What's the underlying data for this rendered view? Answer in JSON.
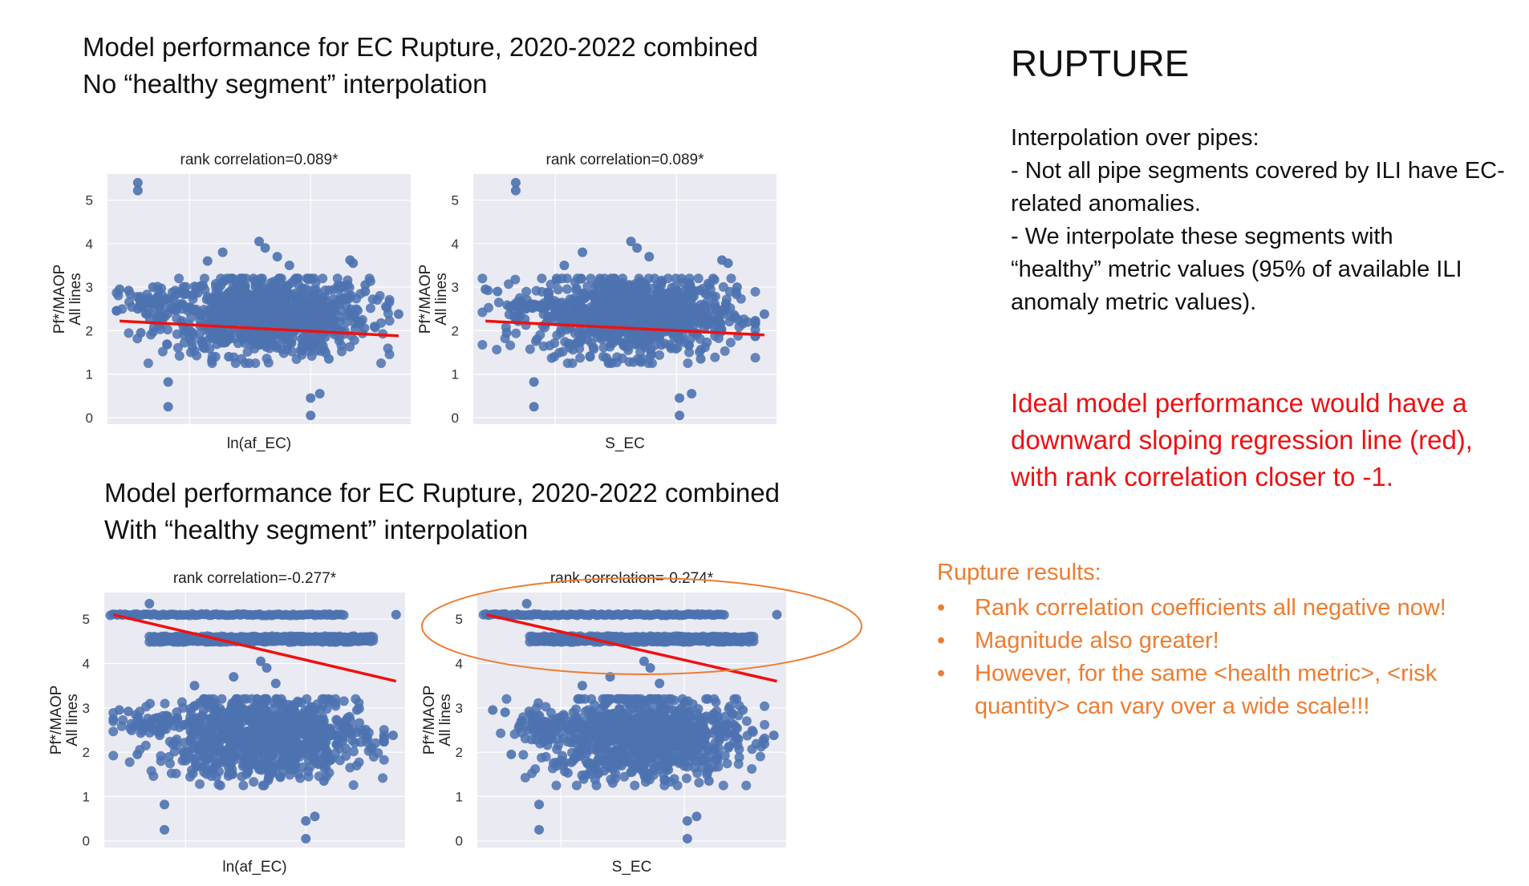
{
  "top_heading": {
    "line1": "Model performance for EC Rupture, 2020-2022 combined",
    "line2": "No “healthy segment” interpolation"
  },
  "bottom_heading": {
    "line1": "Model performance for EC Rupture, 2020-2022 combined",
    "line2": "With “healthy segment” interpolation"
  },
  "side": {
    "title": "RUPTURE",
    "interpolation_lines": [
      "Interpolation over pipes:",
      "- Not all pipe segments covered by ILI have EC-",
      "related anomalies.",
      "- We interpolate these segments with",
      "“healthy” metric values (95% of available ILI",
      "anomaly metric values)."
    ],
    "ideal_lines": [
      "Ideal model performance would have a",
      "downward sloping regression line (red),",
      "with rank correlation closer to -1."
    ],
    "results_heading": "Rupture results:",
    "results_bullets": [
      {
        "line1": "Rank correlation coefficients all negative now!",
        "line2": ""
      },
      {
        "line1": "Magnitude also greater!",
        "line2": ""
      },
      {
        "line1": "However, for the same <health metric>, <risk",
        "line2": "quantity> can vary over a wide scale!!!"
      }
    ],
    "bullet_char": "•"
  },
  "colors": {
    "plot_bg": "#eaeaf2",
    "grid": "#ffffff",
    "points": "#4c72b0",
    "regression": "#ee1111",
    "highlight_ellipse": "#ed7d31",
    "ideal_text": "#ee1111",
    "results_text": "#ed7d31"
  },
  "chart_data": [
    {
      "type": "scatter",
      "title": "rank correlation=0.089*",
      "xlabel": "ln(af_EC)",
      "ylabel_lines": [
        "Pf*/MAOP",
        "All lines"
      ],
      "yticks": [
        0,
        1,
        2,
        3,
        4,
        5
      ],
      "ylim": [
        -0.15,
        5.6
      ],
      "xlim": [
        0,
        1
      ],
      "grid": true,
      "x_tick_labels_visible": false,
      "regression": {
        "x": [
          0.04,
          0.96
        ],
        "y": [
          2.22,
          1.88
        ]
      },
      "bands": [],
      "points": [
        {
          "x": 0.1,
          "y": 5.4
        },
        {
          "x": 0.1,
          "y": 5.22
        },
        {
          "x": 0.04,
          "y": 2.95
        },
        {
          "x": 0.07,
          "y": 2.92
        },
        {
          "x": 0.11,
          "y": 2.6
        },
        {
          "x": 0.15,
          "y": 3.0
        },
        {
          "x": 0.1,
          "y": 2.5
        },
        {
          "x": 0.11,
          "y": 1.95
        },
        {
          "x": 0.2,
          "y": 0.82
        },
        {
          "x": 0.2,
          "y": 0.25
        },
        {
          "x": 0.67,
          "y": 0.45
        },
        {
          "x": 0.7,
          "y": 0.55
        },
        {
          "x": 0.67,
          "y": 0.05
        },
        {
          "x": 0.96,
          "y": 2.38
        },
        {
          "x": 0.8,
          "y": 3.62
        },
        {
          "x": 0.81,
          "y": 3.55
        },
        {
          "x": 0.5,
          "y": 4.05
        },
        {
          "x": 0.52,
          "y": 3.9
        },
        {
          "x": 0.38,
          "y": 3.8
        },
        {
          "x": 0.33,
          "y": 3.6
        },
        {
          "x": 0.56,
          "y": 3.7
        },
        {
          "x": 0.6,
          "y": 3.5
        },
        {
          "x": 0.85,
          "y": 3.05
        },
        {
          "x": 0.85,
          "y": 2.9
        },
        {
          "x": 0.73,
          "y": 1.35
        },
        {
          "x": 0.4,
          "y": 1.4
        },
        {
          "x": 0.28,
          "y": 2.5
        }
      ],
      "clusters": [
        {
          "cx": 0.52,
          "cy": 2.35,
          "sx": 0.17,
          "sy": 0.45,
          "n": 900
        },
        {
          "cx": 0.16,
          "cy": 2.65,
          "sx": 0.05,
          "sy": 0.12,
          "n": 40
        }
      ]
    },
    {
      "type": "scatter",
      "title": "rank correlation=0.089*",
      "xlabel": "S_EC",
      "ylabel_lines": [
        "Pf*/MAOP",
        "All lines"
      ],
      "yticks": [
        0,
        1,
        2,
        3,
        4,
        5
      ],
      "ylim": [
        -0.15,
        5.6
      ],
      "xlim": [
        0,
        1
      ],
      "grid": true,
      "x_tick_labels_visible": false,
      "regression": {
        "x": [
          0.04,
          0.96
        ],
        "y": [
          2.22,
          1.9
        ]
      },
      "bands": [],
      "points": [
        {
          "x": 0.14,
          "y": 5.4
        },
        {
          "x": 0.14,
          "y": 5.22
        },
        {
          "x": 0.04,
          "y": 2.95
        },
        {
          "x": 0.08,
          "y": 2.9
        },
        {
          "x": 0.12,
          "y": 2.55
        },
        {
          "x": 0.11,
          "y": 1.95
        },
        {
          "x": 0.2,
          "y": 0.82
        },
        {
          "x": 0.2,
          "y": 0.25
        },
        {
          "x": 0.68,
          "y": 0.45
        },
        {
          "x": 0.72,
          "y": 0.55
        },
        {
          "x": 0.68,
          "y": 0.05
        },
        {
          "x": 0.96,
          "y": 2.38
        },
        {
          "x": 0.82,
          "y": 3.62
        },
        {
          "x": 0.84,
          "y": 3.55
        },
        {
          "x": 0.52,
          "y": 4.05
        },
        {
          "x": 0.54,
          "y": 3.9
        },
        {
          "x": 0.36,
          "y": 3.8
        },
        {
          "x": 0.3,
          "y": 3.5
        },
        {
          "x": 0.58,
          "y": 3.7
        },
        {
          "x": 0.87,
          "y": 3.0
        },
        {
          "x": 0.75,
          "y": 1.35
        },
        {
          "x": 0.25,
          "y": 2.7
        }
      ],
      "clusters": [
        {
          "cx": 0.53,
          "cy": 2.35,
          "sx": 0.16,
          "sy": 0.45,
          "n": 900
        },
        {
          "cx": 0.2,
          "cy": 2.6,
          "sx": 0.05,
          "sy": 0.12,
          "n": 40
        }
      ]
    },
    {
      "type": "scatter",
      "title": "rank correlation=-0.277*",
      "xlabel": "ln(af_EC)",
      "ylabel_lines": [
        "Pf*/MAOP",
        "All lines"
      ],
      "yticks": [
        0,
        1,
        2,
        3,
        4,
        5
      ],
      "ylim": [
        -0.15,
        5.6
      ],
      "xlim": [
        0,
        1
      ],
      "grid": true,
      "x_tick_labels_visible": false,
      "regression": {
        "x": [
          0.03,
          0.97
        ],
        "y": [
          5.1,
          3.6
        ]
      },
      "bands": [
        {
          "x0": 0.02,
          "x1": 0.8,
          "y": 5.1
        },
        {
          "x0": 0.15,
          "x1": 0.9,
          "y": 4.6
        },
        {
          "x0": 0.15,
          "x1": 0.9,
          "y": 4.5
        }
      ],
      "points": [
        {
          "x": 0.15,
          "y": 5.35
        },
        {
          "x": 0.97,
          "y": 5.1
        },
        {
          "x": 0.05,
          "y": 2.95
        },
        {
          "x": 0.08,
          "y": 2.92
        },
        {
          "x": 0.11,
          "y": 1.95
        },
        {
          "x": 0.2,
          "y": 0.82
        },
        {
          "x": 0.2,
          "y": 0.25
        },
        {
          "x": 0.67,
          "y": 0.45
        },
        {
          "x": 0.7,
          "y": 0.55
        },
        {
          "x": 0.67,
          "y": 0.05
        },
        {
          "x": 0.96,
          "y": 2.38
        },
        {
          "x": 0.52,
          "y": 4.05
        },
        {
          "x": 0.54,
          "y": 3.9
        },
        {
          "x": 0.43,
          "y": 3.7
        },
        {
          "x": 0.57,
          "y": 3.55
        },
        {
          "x": 0.3,
          "y": 3.5
        },
        {
          "x": 0.84,
          "y": 2.95
        },
        {
          "x": 0.73,
          "y": 1.35
        }
      ],
      "clusters": [
        {
          "cx": 0.52,
          "cy": 2.35,
          "sx": 0.17,
          "sy": 0.45,
          "n": 900
        },
        {
          "cx": 0.16,
          "cy": 2.65,
          "sx": 0.05,
          "sy": 0.12,
          "n": 40
        }
      ]
    },
    {
      "type": "scatter",
      "title": "rank correlation=-0.274*",
      "xlabel": "S_EC",
      "ylabel_lines": [
        "Pf*/MAOP",
        "All lines"
      ],
      "yticks": [
        0,
        1,
        2,
        3,
        4,
        5
      ],
      "ylim": [
        -0.15,
        5.6
      ],
      "xlim": [
        0,
        1
      ],
      "grid": true,
      "x_tick_labels_visible": false,
      "regression": {
        "x": [
          0.03,
          0.97
        ],
        "y": [
          5.1,
          3.6
        ]
      },
      "bands": [
        {
          "x0": 0.02,
          "x1": 0.8,
          "y": 5.1
        },
        {
          "x0": 0.17,
          "x1": 0.9,
          "y": 4.6
        },
        {
          "x0": 0.17,
          "x1": 0.9,
          "y": 4.5
        }
      ],
      "points": [
        {
          "x": 0.16,
          "y": 5.35
        },
        {
          "x": 0.97,
          "y": 5.1
        },
        {
          "x": 0.05,
          "y": 2.95
        },
        {
          "x": 0.09,
          "y": 2.9
        },
        {
          "x": 0.11,
          "y": 1.95
        },
        {
          "x": 0.2,
          "y": 0.82
        },
        {
          "x": 0.2,
          "y": 0.25
        },
        {
          "x": 0.68,
          "y": 0.45
        },
        {
          "x": 0.71,
          "y": 0.55
        },
        {
          "x": 0.68,
          "y": 0.05
        },
        {
          "x": 0.96,
          "y": 2.38
        },
        {
          "x": 0.54,
          "y": 4.05
        },
        {
          "x": 0.56,
          "y": 3.9
        },
        {
          "x": 0.43,
          "y": 3.7
        },
        {
          "x": 0.59,
          "y": 3.55
        },
        {
          "x": 0.34,
          "y": 3.5
        },
        {
          "x": 0.86,
          "y": 2.95
        },
        {
          "x": 0.75,
          "y": 1.35
        }
      ],
      "clusters": [
        {
          "cx": 0.53,
          "cy": 2.35,
          "sx": 0.16,
          "sy": 0.45,
          "n": 900
        },
        {
          "cx": 0.2,
          "cy": 2.6,
          "sx": 0.05,
          "sy": 0.12,
          "n": 40
        }
      ]
    }
  ]
}
